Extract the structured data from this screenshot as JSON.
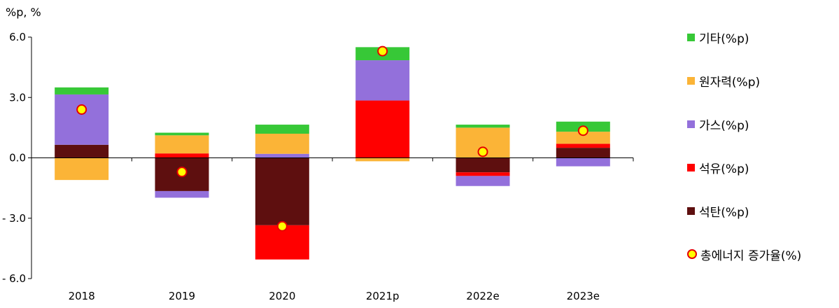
{
  "chart_data": {
    "type": "bar",
    "stacked": true,
    "unit_label": "%p, %",
    "categories": [
      "2018",
      "2019",
      "2020",
      "2021p",
      "2022e",
      "2023e"
    ],
    "ylim": [
      -6.0,
      6.0
    ],
    "yticks": [
      "6.0",
      "3.0",
      "0.0",
      "- 3.0",
      "- 6.0"
    ],
    "ytick_values": [
      6.0,
      3.0,
      0.0,
      -3.0,
      -6.0
    ],
    "grid": false,
    "legend_position": "right",
    "series": [
      {
        "name": "석탄(%p)",
        "color": "#5e0f0f",
        "values": [
          0.65,
          -1.65,
          -3.35,
          0.0,
          -0.72,
          0.5
        ]
      },
      {
        "name": "석유(%p)",
        "color": "#ff0000",
        "values": [
          0.0,
          0.22,
          -1.7,
          2.85,
          -0.18,
          0.2
        ]
      },
      {
        "name": "가스(%p)",
        "color": "#9370db",
        "values": [
          2.5,
          -0.33,
          0.2,
          2.0,
          -0.5,
          -0.42
        ]
      },
      {
        "name": "원자력(%p)",
        "color": "#fbb437",
        "values": [
          -1.1,
          0.9,
          1.0,
          -0.17,
          1.5,
          0.6
        ]
      },
      {
        "name": "기타(%p)",
        "color": "#37c837",
        "values": [
          0.35,
          0.13,
          0.45,
          0.65,
          0.15,
          0.5
        ]
      }
    ],
    "line_series": {
      "name": "총에너지 증가율(%)",
      "values": [
        2.4,
        -0.7,
        -3.4,
        5.3,
        0.3,
        1.35
      ],
      "fill": "#ffff00",
      "stroke": "#e60000"
    },
    "legend_order": [
      "기타(%p)",
      "원자력(%p)",
      "가스(%p)",
      "석유(%p)",
      "석탄(%p)",
      "총에너지 증가율(%)"
    ]
  }
}
